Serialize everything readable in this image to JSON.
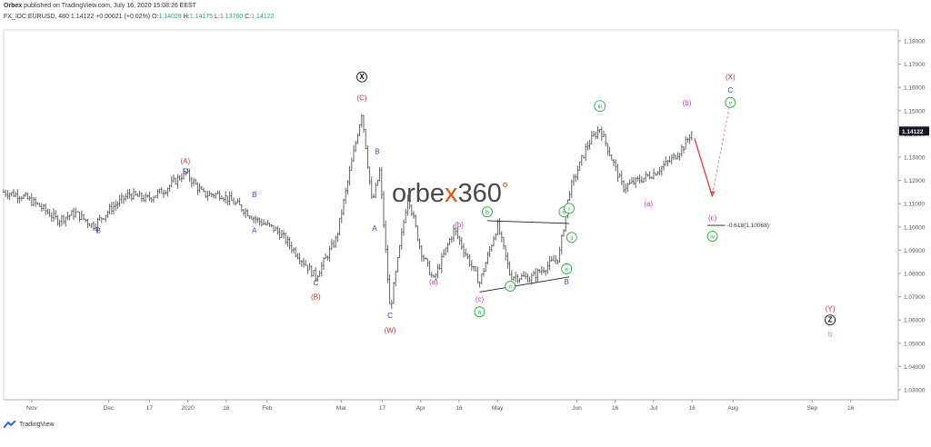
{
  "header": {
    "publisher": "Orbex",
    "published_text": " published on TradingView.com, July 16, 2020 15:08:26 EEST",
    "symbol": "FX_IDC:EURUSD, 480",
    "last": "1.14122",
    "change": "+0.00021 (+0.02%)",
    "o_label": "O:",
    "o_val": "1.14028",
    "h_label": "H:",
    "h_val": "1.14175",
    "l_label": "L:",
    "l_val": "1.13760",
    "c_label": "C:",
    "c_val": "1.14122"
  },
  "watermark": {
    "part1": "orbe",
    "part2": "x",
    "part3": "360",
    "part4": "°"
  },
  "footer": {
    "brand": "TradingView"
  },
  "colors": {
    "bar": "#555555",
    "wave_red": "#d32f2f",
    "wave_blue": "#3f3fbf",
    "wave_magenta": "#c23bb8",
    "wave_green": "#27a845",
    "price_tag_bg": "#131722",
    "accent_orange": "#e65100"
  },
  "chart_data": {
    "type": "ohlc",
    "symbol": "EURUSD",
    "timeframe": "480",
    "ylim": [
      1.025,
      1.19
    ],
    "y_ticks": [
      "1.18000",
      "1.17000",
      "1.16000",
      "1.15000",
      "1.14000",
      "1.13000",
      "1.12000",
      "1.11000",
      "1.10000",
      "1.09000",
      "1.08000",
      "1.07000",
      "1.06000",
      "1.05000",
      "1.04000",
      "1.03000"
    ],
    "x_tick_labels": [
      "Nov",
      "Dec",
      "17",
      "2020",
      "16",
      "Feb",
      "Mar",
      "17",
      "Apr",
      "16",
      "May",
      "Jun",
      "16",
      "Jul",
      "16",
      "Aug",
      "Sep",
      "16"
    ],
    "last_price_tag": "1.14122",
    "price_path": [
      [
        "2019-10-21",
        1.115
      ],
      [
        "2019-10-28",
        1.1135
      ],
      [
        "2019-11-04",
        1.109
      ],
      [
        "2019-11-11",
        1.103
      ],
      [
        "2019-11-18",
        1.106
      ],
      [
        "2019-11-25",
        1.1005
      ],
      [
        "2019-12-02",
        1.108
      ],
      [
        "2019-12-09",
        1.114
      ],
      [
        "2019-12-16",
        1.112
      ],
      [
        "2019-12-23",
        1.116
      ],
      [
        "2019-12-31",
        1.1235
      ],
      [
        "2020-01-07",
        1.114
      ],
      [
        "2020-01-14",
        1.114
      ],
      [
        "2020-01-21",
        1.109
      ],
      [
        "2020-01-28",
        1.103
      ],
      [
        "2020-02-04",
        1.099
      ],
      [
        "2020-02-07",
        1.096
      ],
      [
        "2020-02-20",
        1.0785
      ],
      [
        "2020-02-28",
        1.095
      ],
      [
        "2020-03-09",
        1.1495
      ],
      [
        "2020-03-13",
        1.11
      ],
      [
        "2020-03-16",
        1.124
      ],
      [
        "2020-03-20",
        1.064
      ],
      [
        "2020-03-27",
        1.114
      ],
      [
        "2020-04-01",
        1.09
      ],
      [
        "2020-04-06",
        1.077
      ],
      [
        "2020-04-14",
        1.099
      ],
      [
        "2020-04-24",
        1.076
      ],
      [
        "2020-05-01",
        1.101
      ],
      [
        "2020-05-06",
        1.079
      ],
      [
        "2020-05-14",
        1.078
      ],
      [
        "2020-05-25",
        1.087
      ],
      [
        "2020-05-29",
        1.115
      ],
      [
        "2020-06-05",
        1.135
      ],
      [
        "2020-06-10",
        1.1425
      ],
      [
        "2020-06-19",
        1.117
      ],
      [
        "2020-07-01",
        1.123
      ],
      [
        "2020-07-09",
        1.13
      ],
      [
        "2020-07-13",
        1.135
      ],
      [
        "2020-07-16",
        1.1412
      ]
    ],
    "projection": {
      "down_arrow": [
        [
          "2020-07-17",
          1.138
        ],
        [
          "2020-07-24",
          1.113
        ]
      ],
      "up_dashed": [
        [
          "2020-07-24",
          1.114
        ],
        [
          "2020-07-31",
          1.154
        ]
      ],
      "fib_label": "-0.618(1.10068)",
      "fib_price": 1.10068
    },
    "trendlines": [
      [
        [
          "2020-04-27",
          1.1027
        ],
        [
          "2020-05-29",
          1.1015
        ]
      ],
      [
        [
          "2020-04-24",
          1.072
        ],
        [
          "2020-05-29",
          1.0785
        ]
      ]
    ],
    "annotations": [
      {
        "text": "(A)",
        "color": "red",
        "date": "2019-12-31",
        "price": 1.1285
      },
      {
        "text": "C",
        "color": "blue",
        "date": "2019-12-31",
        "price": 1.124
      },
      {
        "text": "B",
        "color": "blue",
        "date": "2019-11-27",
        "price": 1.0985
      },
      {
        "text": "B",
        "color": "blue",
        "date": "2020-01-27",
        "price": 1.114
      },
      {
        "text": "A",
        "color": "blue",
        "date": "2020-01-27",
        "price": 1.0985
      },
      {
        "text": "C",
        "color": "blue",
        "date": "2020-02-20",
        "price": 1.076
      },
      {
        "text": "(B)",
        "color": "red",
        "date": "2020-02-20",
        "price": 1.07
      },
      {
        "text": "X",
        "color": "black",
        "circled": true,
        "date": "2020-03-09",
        "price": 1.1645
      },
      {
        "text": "(C)",
        "color": "red",
        "date": "2020-03-09",
        "price": 1.1555
      },
      {
        "text": "B",
        "color": "blue",
        "date": "2020-03-15",
        "price": 1.1325
      },
      {
        "text": "A",
        "color": "blue",
        "date": "2020-03-14",
        "price": 1.0995
      },
      {
        "text": "C",
        "color": "blue",
        "date": "2020-03-20",
        "price": 1.062
      },
      {
        "text": "(W)",
        "color": "red",
        "date": "2020-03-20",
        "price": 1.0555
      },
      {
        "text": "(a)",
        "color": "magenta",
        "date": "2020-04-06",
        "price": 1.0765
      },
      {
        "text": "(b)",
        "color": "magenta",
        "date": "2020-04-16",
        "price": 1.101
      },
      {
        "text": "(c)",
        "color": "magenta",
        "date": "2020-04-24",
        "price": 1.069
      },
      {
        "text": "a",
        "color": "green",
        "circled": true,
        "date": "2020-04-24",
        "price": 1.0635
      },
      {
        "text": "b",
        "color": "green",
        "circled": true,
        "date": "2020-04-27",
        "price": 1.1065
      },
      {
        "text": "c",
        "color": "green",
        "circled": true,
        "date": "2020-05-06",
        "price": 1.0745
      },
      {
        "text": "d",
        "color": "green",
        "circled": true,
        "date": "2020-05-27",
        "price": 1.1065
      },
      {
        "text": "e",
        "color": "green",
        "circled": true,
        "date": "2020-05-28",
        "price": 1.082
      },
      {
        "text": "B",
        "color": "blue",
        "date": "2020-05-28",
        "price": 1.0765
      },
      {
        "text": "i",
        "color": "green",
        "circled": true,
        "date": "2020-05-29",
        "price": 1.108
      },
      {
        "text": "ii",
        "color": "green",
        "circled": true,
        "date": "2020-05-30",
        "price": 1.0955
      },
      {
        "text": "iii",
        "color": "green",
        "circled": true,
        "date": "2020-06-10",
        "price": 1.152
      },
      {
        "text": "(a)",
        "color": "magenta",
        "date": "2020-06-29",
        "price": 1.11
      },
      {
        "text": "(b)",
        "color": "magenta",
        "date": "2020-07-14",
        "price": 1.1535
      },
      {
        "text": "(c)",
        "color": "magenta",
        "date": "2020-07-24",
        "price": 1.104
      },
      {
        "text": "iv",
        "color": "green",
        "circled": true,
        "date": "2020-07-24",
        "price": 1.096
      },
      {
        "text": "(X)",
        "color": "red",
        "date": "2020-07-31",
        "price": 1.1645
      },
      {
        "text": "C",
        "color": "blue",
        "date": "2020-07-31",
        "price": 1.159
      },
      {
        "text": "v",
        "color": "green",
        "circled": true,
        "date": "2020-07-31",
        "price": 1.1535
      },
      {
        "text": "(Y)",
        "color": "red",
        "date": "2020-09-08",
        "price": 1.065
      },
      {
        "text": "Z",
        "color": "black",
        "circled": true,
        "date": "2020-09-08",
        "price": 1.06
      },
      {
        "text": "b",
        "color": "salmon",
        "date": "2020-09-08",
        "price": 1.054
      }
    ]
  }
}
